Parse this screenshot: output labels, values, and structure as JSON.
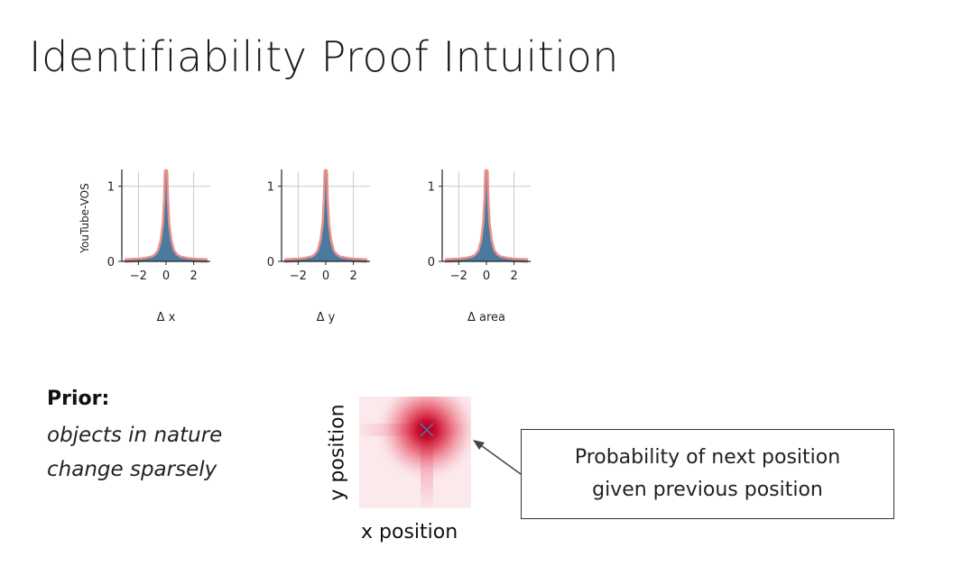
{
  "title": "Identifiability Proof Intuition",
  "chart_data": [
    {
      "type": "area",
      "panel": "delta-x",
      "ylabel": "YouTube-VOS",
      "xlabel": "Δ x",
      "xlim": [
        -3.2,
        3.2
      ],
      "ylim": [
        0,
        1.2
      ],
      "xticks": [
        -2,
        0,
        2
      ],
      "xtick_labels": [
        "−2",
        "0",
        "2"
      ],
      "yticks": [
        0,
        1
      ],
      "ytick_labels": [
        "0",
        "1"
      ],
      "grid": true,
      "series": [
        {
          "kind": "histogram",
          "color": "#4a7aa0",
          "x": [
            -3,
            -2.5,
            -2,
            -1.5,
            -1,
            -0.75,
            -0.5,
            -0.3,
            -0.15,
            -0.05,
            0,
            0.05,
            0.15,
            0.3,
            0.5,
            0.75,
            1,
            1.5,
            2,
            2.5,
            3
          ],
          "y": [
            0.01,
            0.015,
            0.02,
            0.03,
            0.05,
            0.08,
            0.14,
            0.28,
            0.5,
            0.85,
            1.2,
            0.85,
            0.5,
            0.28,
            0.14,
            0.08,
            0.05,
            0.03,
            0.02,
            0.015,
            0.01
          ]
        },
        {
          "kind": "fit-line",
          "color": "#e8847c",
          "x": [
            -3,
            -2.5,
            -2,
            -1.5,
            -1,
            -0.75,
            -0.5,
            -0.3,
            -0.15,
            -0.05,
            0,
            0.05,
            0.15,
            0.3,
            0.5,
            0.75,
            1,
            1.5,
            2,
            2.5,
            3
          ],
          "y": [
            0.01,
            0.015,
            0.02,
            0.03,
            0.05,
            0.08,
            0.14,
            0.28,
            0.5,
            0.85,
            1.2,
            0.85,
            0.5,
            0.28,
            0.14,
            0.08,
            0.05,
            0.03,
            0.02,
            0.015,
            0.01
          ]
        }
      ]
    },
    {
      "type": "area",
      "panel": "delta-y",
      "ylabel": "",
      "xlabel": "Δ y",
      "xlim": [
        -3.2,
        3.2
      ],
      "ylim": [
        0,
        1.2
      ],
      "xticks": [
        -2,
        0,
        2
      ],
      "xtick_labels": [
        "−2",
        "0",
        "2"
      ],
      "yticks": [
        0,
        1
      ],
      "ytick_labels": [
        "0",
        "1"
      ],
      "grid": true,
      "series": [
        {
          "kind": "histogram",
          "color": "#4a7aa0",
          "x": [
            -3,
            -2.5,
            -2,
            -1.5,
            -1,
            -0.75,
            -0.5,
            -0.3,
            -0.15,
            -0.05,
            0,
            0.05,
            0.15,
            0.3,
            0.5,
            0.75,
            1,
            1.5,
            2,
            2.5,
            3
          ],
          "y": [
            0.01,
            0.015,
            0.02,
            0.03,
            0.05,
            0.08,
            0.14,
            0.28,
            0.5,
            0.85,
            1.2,
            0.85,
            0.5,
            0.28,
            0.14,
            0.08,
            0.05,
            0.03,
            0.02,
            0.015,
            0.01
          ]
        },
        {
          "kind": "fit-line",
          "color": "#e8847c",
          "x": [
            -3,
            -2.5,
            -2,
            -1.5,
            -1,
            -0.75,
            -0.5,
            -0.3,
            -0.15,
            -0.05,
            0,
            0.05,
            0.15,
            0.3,
            0.5,
            0.75,
            1,
            1.5,
            2,
            2.5,
            3
          ],
          "y": [
            0.01,
            0.015,
            0.02,
            0.03,
            0.05,
            0.08,
            0.14,
            0.28,
            0.5,
            0.85,
            1.2,
            0.85,
            0.5,
            0.28,
            0.14,
            0.08,
            0.05,
            0.03,
            0.02,
            0.015,
            0.01
          ]
        }
      ]
    },
    {
      "type": "area",
      "panel": "delta-area",
      "ylabel": "",
      "xlabel": "Δ area",
      "xlim": [
        -3.2,
        3.2
      ],
      "ylim": [
        0,
        1.2
      ],
      "xticks": [
        -2,
        0,
        2
      ],
      "xtick_labels": [
        "−2",
        "0",
        "2"
      ],
      "yticks": [
        0,
        1
      ],
      "ytick_labels": [
        "0",
        "1"
      ],
      "grid": true,
      "series": [
        {
          "kind": "histogram",
          "color": "#4a7aa0",
          "x": [
            -3,
            -2.5,
            -2,
            -1.5,
            -1,
            -0.75,
            -0.5,
            -0.3,
            -0.15,
            -0.05,
            0,
            0.05,
            0.15,
            0.3,
            0.5,
            0.75,
            1,
            1.5,
            2,
            2.5,
            3
          ],
          "y": [
            0.01,
            0.015,
            0.02,
            0.03,
            0.05,
            0.08,
            0.14,
            0.28,
            0.5,
            0.85,
            1.2,
            0.85,
            0.5,
            0.28,
            0.14,
            0.08,
            0.05,
            0.03,
            0.02,
            0.015,
            0.01
          ]
        },
        {
          "kind": "fit-line",
          "color": "#e8847c",
          "x": [
            -3,
            -2.5,
            -2,
            -1.5,
            -1,
            -0.75,
            -0.5,
            -0.3,
            -0.15,
            -0.05,
            0,
            0.05,
            0.15,
            0.3,
            0.5,
            0.75,
            1,
            1.5,
            2,
            2.5,
            3
          ],
          "y": [
            0.01,
            0.015,
            0.02,
            0.03,
            0.05,
            0.08,
            0.14,
            0.28,
            0.5,
            0.85,
            1.2,
            0.85,
            0.5,
            0.28,
            0.14,
            0.08,
            0.05,
            0.03,
            0.02,
            0.015,
            0.01
          ]
        }
      ]
    },
    {
      "type": "heatmap",
      "panel": "next-position-probability",
      "xlabel": "x position",
      "ylabel": "y position",
      "peak_color": "#c8102e",
      "marker": "cross",
      "marker_color": "#5b6fb5"
    }
  ],
  "prior": {
    "heading": "Prior:",
    "line1": "objects in nature",
    "line2": "change sparsely"
  },
  "callout": {
    "line1": "Probability of next position",
    "line2": "given previous position"
  }
}
